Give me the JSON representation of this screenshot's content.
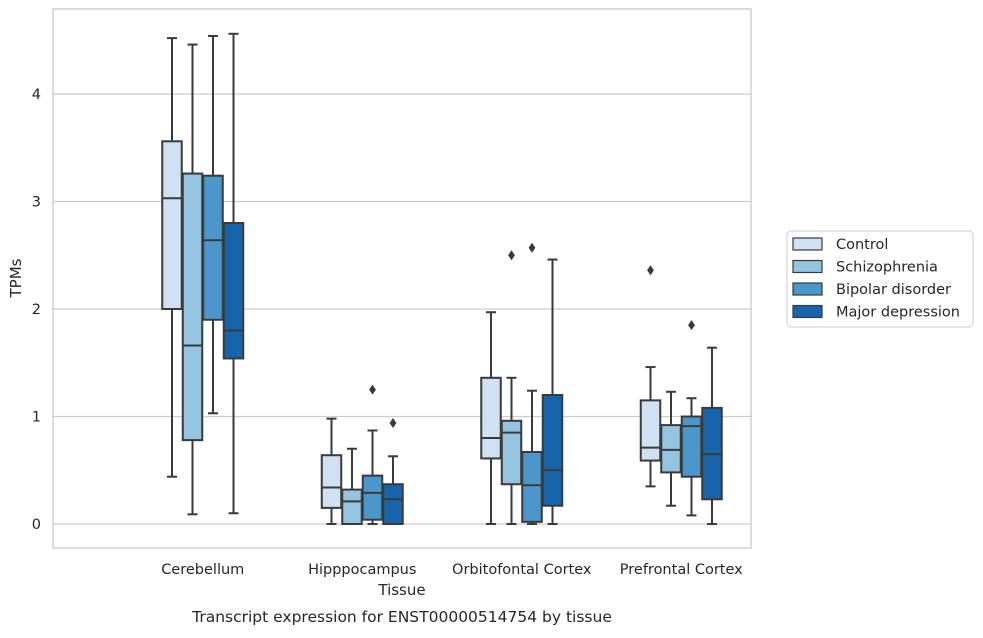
{
  "chart_data": {
    "type": "box",
    "title": "Transcript expression for ENST00000514754 by tissue",
    "xlabel": "Tissue",
    "ylabel": "TPMs",
    "ylim": [
      -0.22,
      4.8
    ],
    "yticks": [
      0,
      1,
      2,
      3,
      4
    ],
    "grid": "horizontal",
    "legend_placement": "right",
    "categories": [
      "Cerebellum",
      "Hipppocampus",
      "Orbitofontal Cortex",
      "Prefrontal Cortex"
    ],
    "series": [
      {
        "name": "Control",
        "color": "#d0e1f2",
        "boxes": [
          {
            "whislo": 0.44,
            "q1": 2.0,
            "med": 3.03,
            "q3": 3.56,
            "whishi": 4.52,
            "fliers": []
          },
          {
            "whislo": 0.0,
            "q1": 0.15,
            "med": 0.34,
            "q3": 0.64,
            "whishi": 0.98,
            "fliers": []
          },
          {
            "whislo": 0.0,
            "q1": 0.61,
            "med": 0.8,
            "q3": 1.36,
            "whishi": 1.97,
            "fliers": []
          },
          {
            "whislo": 0.35,
            "q1": 0.59,
            "med": 0.71,
            "q3": 1.15,
            "whishi": 1.46,
            "fliers": [
              2.36
            ]
          }
        ]
      },
      {
        "name": "Schizophrenia",
        "color": "#94c4df",
        "boxes": [
          {
            "whislo": 0.09,
            "q1": 0.78,
            "med": 1.66,
            "q3": 3.26,
            "whishi": 4.46,
            "fliers": []
          },
          {
            "whislo": 0.0,
            "q1": 0.0,
            "med": 0.21,
            "q3": 0.32,
            "whishi": 0.7,
            "fliers": []
          },
          {
            "whislo": 0.0,
            "q1": 0.37,
            "med": 0.85,
            "q3": 0.96,
            "whishi": 1.36,
            "fliers": [
              2.5
            ]
          },
          {
            "whislo": 0.17,
            "q1": 0.48,
            "med": 0.69,
            "q3": 0.92,
            "whishi": 1.23,
            "fliers": []
          }
        ]
      },
      {
        "name": "Bipolar disorder",
        "color": "#4b97c9",
        "boxes": [
          {
            "whislo": 1.03,
            "q1": 1.9,
            "med": 2.64,
            "q3": 3.24,
            "whishi": 4.54,
            "fliers": []
          },
          {
            "whislo": 0.0,
            "q1": 0.04,
            "med": 0.29,
            "q3": 0.45,
            "whishi": 0.87,
            "fliers": [
              1.25
            ]
          },
          {
            "whislo": 0.0,
            "q1": 0.02,
            "med": 0.36,
            "q3": 0.67,
            "whishi": 1.24,
            "fliers": [
              2.57
            ]
          },
          {
            "whislo": 0.08,
            "q1": 0.44,
            "med": 0.91,
            "q3": 1.0,
            "whishi": 1.17,
            "fliers": [
              1.85
            ]
          }
        ]
      },
      {
        "name": "Major depression",
        "color": "#1764ab",
        "boxes": [
          {
            "whislo": 0.1,
            "q1": 1.54,
            "med": 1.8,
            "q3": 2.8,
            "whishi": 4.56,
            "fliers": []
          },
          {
            "whislo": 0.0,
            "q1": 0.0,
            "med": 0.23,
            "q3": 0.37,
            "whishi": 0.63,
            "fliers": [
              0.94
            ]
          },
          {
            "whislo": 0.0,
            "q1": 0.17,
            "med": 0.5,
            "q3": 1.2,
            "whishi": 2.46,
            "fliers": []
          },
          {
            "whislo": 0.0,
            "q1": 0.23,
            "med": 0.65,
            "q3": 1.08,
            "whishi": 1.64,
            "fliers": []
          }
        ]
      }
    ]
  }
}
